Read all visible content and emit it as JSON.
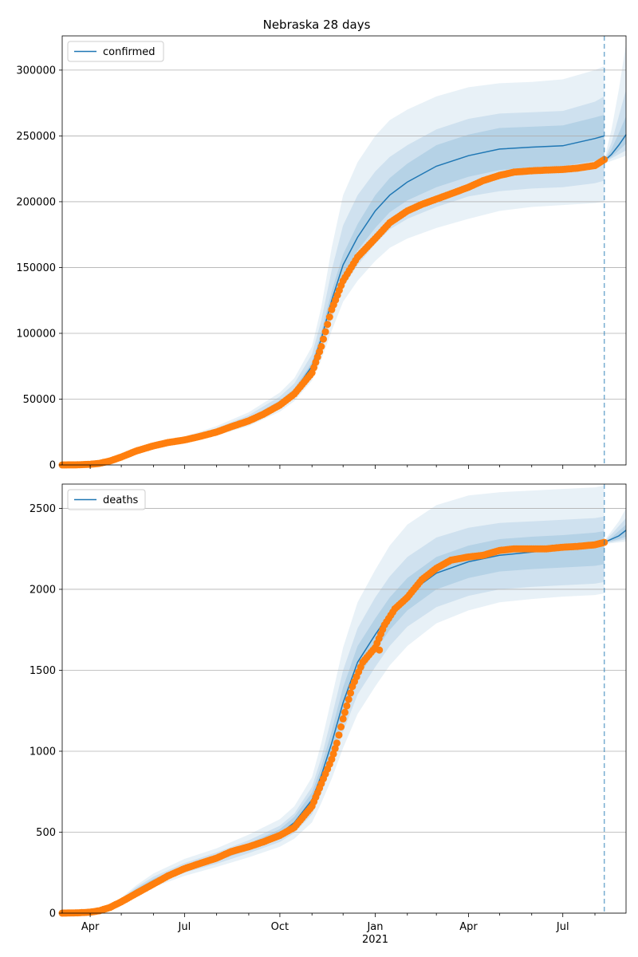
{
  "title": "Nebraska 28 days",
  "colors": {
    "line": "#1f77b4",
    "band": "#1f77b4",
    "observed": "#ff7f0e",
    "grid": "#b0b0b0",
    "vline": "#1f77b4"
  },
  "chart_data": [
    {
      "type": "line",
      "legend": "confirmed",
      "legend_position": "top-left",
      "grid": "horizontal",
      "xlim": [
        "2020-03-05",
        "2021-08-31"
      ],
      "ylim": [
        0,
        326000
      ],
      "yticks": [
        0,
        50000,
        100000,
        150000,
        200000,
        250000,
        300000
      ],
      "forecast_start": "2021-08-10",
      "model": {
        "x": [
          "2020-03-05",
          "2020-04-01",
          "2020-04-15",
          "2020-05-01",
          "2020-05-15",
          "2020-06-01",
          "2020-07-01",
          "2020-08-01",
          "2020-09-01",
          "2020-10-01",
          "2020-10-15",
          "2020-11-01",
          "2020-11-10",
          "2020-11-20",
          "2020-12-01",
          "2020-12-15",
          "2021-01-01",
          "2021-01-15",
          "2021-02-01",
          "2021-03-01",
          "2021-04-01",
          "2021-05-01",
          "2021-06-01",
          "2021-07-01",
          "2021-08-01",
          "2021-08-10"
        ],
        "y": [
          0,
          500,
          2500,
          7500,
          11500,
          15000,
          19000,
          25500,
          34000,
          47000,
          56000,
          75000,
          96000,
          125000,
          152000,
          173000,
          193000,
          205000,
          215000,
          227000,
          235000,
          240000,
          241500,
          242500,
          248000,
          250000
        ]
      },
      "forecast": {
        "x": [
          "2021-08-10",
          "2021-08-17",
          "2021-08-24",
          "2021-08-31"
        ],
        "y": [
          231000,
          236000,
          243000,
          251000
        ]
      },
      "bands": [
        {
          "lower": [
            0,
            450,
            2300,
            6900,
            10500,
            13500,
            17000,
            22500,
            29500,
            40500,
            48500,
            64000,
            80000,
            102000,
            124000,
            140000,
            155000,
            165000,
            172000,
            180000,
            187000,
            193000,
            196000,
            197500,
            199000,
            200000
          ],
          "upper": [
            0,
            550,
            2700,
            8100,
            12500,
            16800,
            21500,
            29500,
            40000,
            55000,
            66000,
            90000,
            120000,
            165000,
            205000,
            230000,
            250000,
            262000,
            270000,
            280000,
            287000,
            290000,
            291000,
            293000,
            300000,
            303000
          ]
        },
        {
          "lower": [
            0,
            470,
            2380,
            7150,
            10900,
            14000,
            17800,
            23700,
            31200,
            43000,
            51500,
            68000,
            86000,
            111000,
            135000,
            152000,
            168000,
            179000,
            187000,
            196000,
            204000,
            208000,
            210000,
            211000,
            214000,
            216000
          ],
          "upper": [
            0,
            530,
            2620,
            7850,
            12100,
            16200,
            20500,
            28000,
            37800,
            52000,
            62000,
            84000,
            110000,
            148000,
            182000,
            205000,
            223000,
            234000,
            243000,
            255000,
            263000,
            267000,
            268000,
            269000,
            276000,
            280000
          ]
        },
        {
          "lower": [
            0,
            485,
            2440,
            7330,
            11200,
            14500,
            18400,
            24600,
            32600,
            45000,
            54000,
            72000,
            91000,
            118000,
            144000,
            163000,
            180000,
            192000,
            201000,
            211000,
            219000,
            224000,
            226000,
            227000,
            231000,
            233000
          ],
          "upper": [
            0,
            515,
            2560,
            7670,
            11800,
            15500,
            19600,
            26400,
            35400,
            49000,
            58000,
            78000,
            101000,
            132000,
            160000,
            183000,
            205000,
            218000,
            229000,
            243000,
            251000,
            256000,
            257000,
            258000,
            264000,
            266000
          ]
        }
      ],
      "forecast_bands": [
        {
          "lower": [
            229000,
            231000,
            233000,
            235000
          ],
          "upper": [
            232000,
            255000,
            285000,
            320000
          ]
        },
        {
          "lower": [
            230000,
            233000,
            236000,
            239000
          ],
          "upper": [
            231500,
            245000,
            265000,
            285000
          ]
        },
        {
          "lower": [
            230500,
            234000,
            239000,
            244000
          ],
          "upper": [
            231200,
            240000,
            252000,
            265000
          ]
        }
      ],
      "observed": {
        "x": [
          "2020-03-05",
          "2020-03-20",
          "2020-04-01",
          "2020-04-10",
          "2020-04-20",
          "2020-05-01",
          "2020-05-15",
          "2020-06-01",
          "2020-06-15",
          "2020-07-01",
          "2020-07-15",
          "2020-08-01",
          "2020-08-15",
          "2020-09-01",
          "2020-09-15",
          "2020-10-01",
          "2020-10-15",
          "2020-11-01",
          "2020-11-10",
          "2020-11-20",
          "2020-12-01",
          "2020-12-15",
          "2021-01-01",
          "2021-01-15",
          "2021-02-01",
          "2021-02-15",
          "2021-03-01",
          "2021-03-15",
          "2021-04-01",
          "2021-04-15",
          "2021-05-01",
          "2021-05-15",
          "2021-06-01",
          "2021-06-15",
          "2021-07-01",
          "2021-07-15",
          "2021-08-01",
          "2021-08-10"
        ],
        "y": [
          0,
          100,
          500,
          1200,
          3000,
          6000,
          10500,
          14500,
          17000,
          19000,
          21500,
          25000,
          29000,
          33500,
          38500,
          45500,
          54000,
          70000,
          90000,
          118000,
          140000,
          158000,
          172000,
          184000,
          193000,
          198000,
          202000,
          206000,
          211000,
          216000,
          220000,
          222500,
          223500,
          224000,
          224500,
          225500,
          227500,
          232000
        ]
      }
    },
    {
      "type": "line",
      "legend": "deaths",
      "legend_position": "top-left",
      "grid": "horizontal",
      "xlim": [
        "2020-03-05",
        "2021-08-31"
      ],
      "ylim": [
        0,
        2650
      ],
      "yticks": [
        0,
        500,
        1000,
        1500,
        2000,
        2500
      ],
      "forecast_start": "2021-08-10",
      "xticks": [
        {
          "date": "2020-04-01",
          "label": "Apr"
        },
        {
          "date": "2020-07-01",
          "label": "Jul"
        },
        {
          "date": "2020-10-01",
          "label": "Oct"
        },
        {
          "date": "2021-01-01",
          "label": "Jan",
          "sublabel": "2021"
        },
        {
          "date": "2021-04-01",
          "label": "Apr"
        },
        {
          "date": "2021-07-01",
          "label": "Jul"
        }
      ],
      "model": {
        "x": [
          "2020-03-05",
          "2020-04-01",
          "2020-04-15",
          "2020-05-01",
          "2020-05-15",
          "2020-06-01",
          "2020-07-01",
          "2020-08-01",
          "2020-09-01",
          "2020-10-01",
          "2020-10-15",
          "2020-11-01",
          "2020-11-10",
          "2020-11-20",
          "2020-12-01",
          "2020-12-15",
          "2021-01-01",
          "2021-01-15",
          "2021-02-01",
          "2021-03-01",
          "2021-04-01",
          "2021-05-01",
          "2021-06-01",
          "2021-07-01",
          "2021-08-01",
          "2021-08-10"
        ],
        "y": [
          0,
          5,
          25,
          80,
          140,
          200,
          280,
          340,
          410,
          490,
          560,
          700,
          850,
          1050,
          1300,
          1550,
          1720,
          1850,
          1970,
          2100,
          2170,
          2210,
          2230,
          2250,
          2270,
          2285
        ]
      },
      "forecast": {
        "x": [
          "2021-08-10",
          "2021-08-17",
          "2021-08-24",
          "2021-08-31"
        ],
        "y": [
          2290,
          2310,
          2330,
          2365
        ]
      },
      "bands": [
        {
          "lower": [
            0,
            4,
            20,
            65,
            110,
            160,
            230,
            285,
            345,
            410,
            460,
            560,
            680,
            830,
            1020,
            1230,
            1400,
            1530,
            1650,
            1790,
            1870,
            1920,
            1940,
            1955,
            1965,
            1975
          ],
          "upper": [
            0,
            6,
            30,
            95,
            170,
            245,
            335,
            400,
            485,
            580,
            660,
            840,
            1050,
            1330,
            1640,
            1920,
            2120,
            2270,
            2400,
            2520,
            2580,
            2600,
            2610,
            2620,
            2630,
            2640
          ]
        },
        {
          "lower": [
            0,
            4.4,
            22,
            70,
            122,
            175,
            250,
            305,
            370,
            440,
            495,
            610,
            740,
            910,
            1120,
            1350,
            1520,
            1650,
            1770,
            1890,
            1960,
            2000,
            2015,
            2025,
            2035,
            2045
          ],
          "upper": [
            0,
            5.6,
            28,
            90,
            158,
            225,
            310,
            375,
            450,
            540,
            615,
            780,
            960,
            1210,
            1500,
            1760,
            1950,
            2080,
            2200,
            2320,
            2380,
            2410,
            2420,
            2430,
            2440,
            2450
          ]
        },
        {
          "lower": [
            0,
            4.7,
            23.5,
            75,
            131,
            188,
            265,
            322,
            390,
            462,
            525,
            655,
            795,
            975,
            1205,
            1450,
            1620,
            1750,
            1870,
            2000,
            2070,
            2110,
            2125,
            2135,
            2145,
            2155
          ],
          "upper": [
            0,
            5.3,
            26.5,
            85,
            149,
            212,
            295,
            358,
            430,
            518,
            595,
            745,
            905,
            1125,
            1395,
            1650,
            1820,
            1950,
            2070,
            2200,
            2270,
            2310,
            2325,
            2335,
            2350,
            2360
          ]
        }
      ],
      "forecast_bands": [
        {
          "lower": [
            2280,
            2285,
            2290,
            2295
          ],
          "upper": [
            2300,
            2360,
            2420,
            2500
          ]
        },
        {
          "lower": [
            2285,
            2292,
            2300,
            2310
          ],
          "upper": [
            2295,
            2340,
            2390,
            2440
          ]
        },
        {
          "lower": [
            2288,
            2298,
            2310,
            2325
          ],
          "upper": [
            2292,
            2320,
            2360,
            2400
          ]
        }
      ],
      "observed": {
        "x": [
          "2020-03-05",
          "2020-03-20",
          "2020-04-01",
          "2020-04-10",
          "2020-04-20",
          "2020-05-01",
          "2020-05-15",
          "2020-06-01",
          "2020-06-15",
          "2020-07-01",
          "2020-07-15",
          "2020-08-01",
          "2020-08-15",
          "2020-09-01",
          "2020-09-15",
          "2020-10-01",
          "2020-10-15",
          "2020-11-01",
          "2020-11-10",
          "2020-11-20",
          "2020-11-25",
          "2020-12-01",
          "2020-12-10",
          "2020-12-20",
          "2021-01-01",
          "2021-01-10",
          "2021-01-20",
          "2021-02-01",
          "2021-02-15",
          "2021-03-01",
          "2021-03-15",
          "2021-04-01",
          "2021-04-15",
          "2021-05-01",
          "2021-05-15",
          "2021-06-01",
          "2021-06-15",
          "2021-07-01",
          "2021-07-15",
          "2021-08-01",
          "2021-08-10"
        ],
        "y": [
          0,
          2,
          6,
          15,
          35,
          70,
          120,
          180,
          230,
          275,
          305,
          340,
          380,
          410,
          440,
          480,
          530,
          660,
          800,
          950,
          1050,
          1200,
          1400,
          1550,
          1640,
          1780,
          1880,
          1950,
          2060,
          2130,
          2180,
          2200,
          2210,
          2240,
          2250,
          2250,
          2250,
          2260,
          2265,
          2275,
          2290
        ]
      },
      "observed_outliers": {
        "x": [
          "2021-01-05"
        ],
        "y": [
          1625
        ]
      }
    }
  ]
}
